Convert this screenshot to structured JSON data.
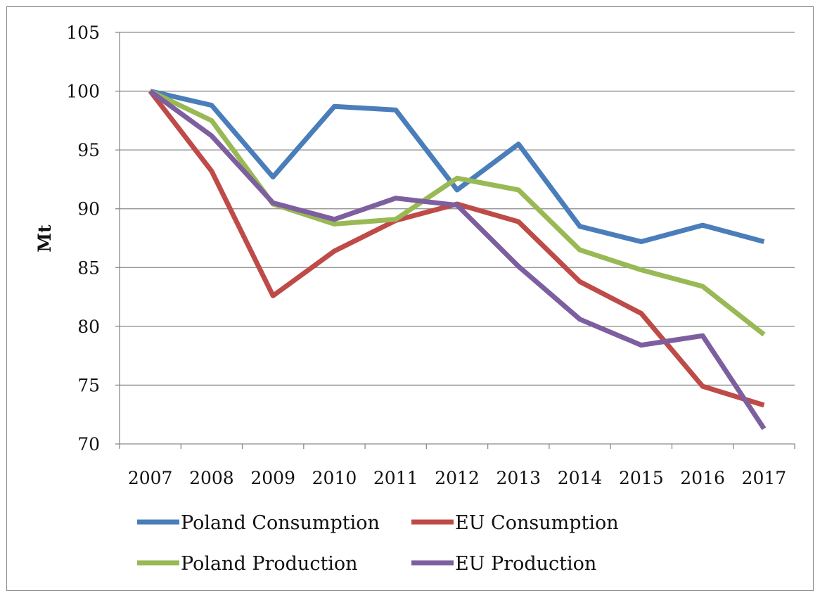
{
  "chart_data": {
    "type": "line",
    "title": "",
    "xlabel": "",
    "ylabel": "Mt",
    "ylim": [
      70,
      105
    ],
    "yticks": [
      70,
      75,
      80,
      85,
      90,
      95,
      100,
      105
    ],
    "grid": true,
    "legend_position": "bottom",
    "categories": [
      "2007",
      "2008",
      "2009",
      "2010",
      "2011",
      "2012",
      "2013",
      "2014",
      "2015",
      "2016",
      "2017"
    ],
    "series": [
      {
        "name": "Poland Consumption",
        "color": "#4A7EBB",
        "values": [
          100,
          98.8,
          92.7,
          98.7,
          98.4,
          91.6,
          95.5,
          88.5,
          87.2,
          88.6,
          87.2
        ]
      },
      {
        "name": "EU Consumption",
        "color": "#BE4B48",
        "values": [
          100,
          93.2,
          82.6,
          86.4,
          89.0,
          90.4,
          88.9,
          83.8,
          81.1,
          74.9,
          73.3
        ]
      },
      {
        "name": "Poland Production",
        "color": "#98B954",
        "values": [
          100,
          97.5,
          90.4,
          88.7,
          89.1,
          92.6,
          91.6,
          86.5,
          84.8,
          83.4,
          79.3
        ]
      },
      {
        "name": "EU Production",
        "color": "#7D5FA0",
        "values": [
          100,
          96.2,
          90.5,
          89.1,
          90.9,
          90.3,
          85.1,
          80.6,
          78.4,
          79.2,
          71.3
        ]
      }
    ]
  }
}
